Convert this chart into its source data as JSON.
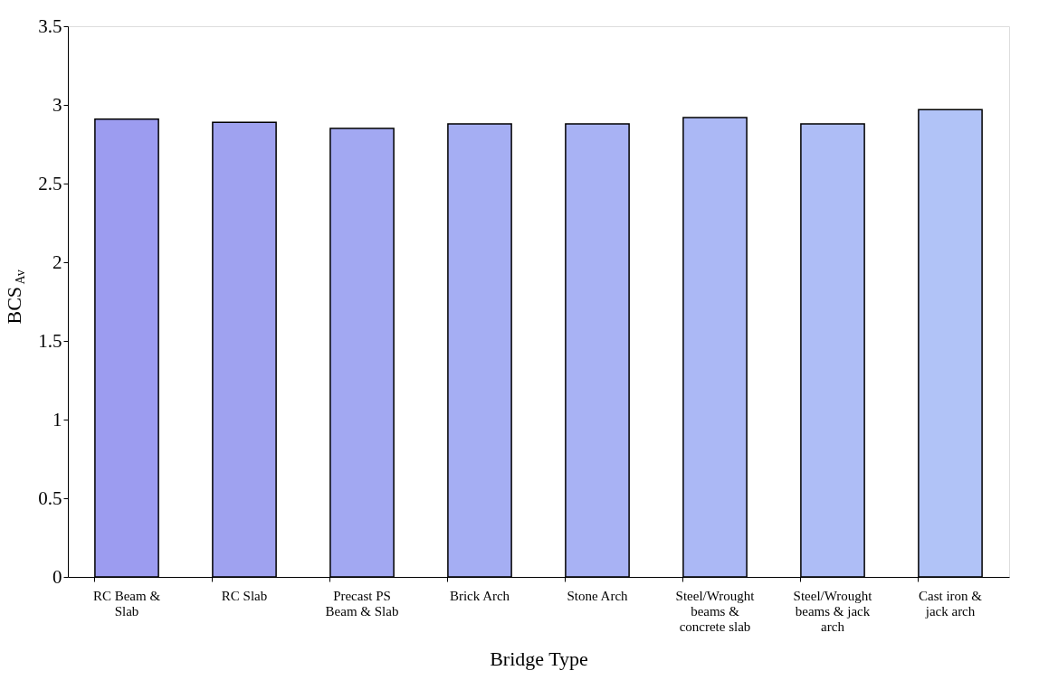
{
  "chart_data": {
    "type": "bar",
    "xlabel": "Bridge Type",
    "ylabel": "BCS$_{Av}$",
    "categories": [
      "RC Beam & Slab",
      "RC Slab",
      "Precast PS Beam & Slab",
      "Brick Arch",
      "Stone Arch",
      "Steel/Wrought beams & concrete slab",
      "Steel/Wrought beams & jack arch",
      "Cast iron & jack arch"
    ],
    "values": [
      2.91,
      2.89,
      2.85,
      2.88,
      2.88,
      2.92,
      2.88,
      2.97
    ],
    "colors": [
      "#9c9cf0",
      "#9fa2f0",
      "#a2a8f2",
      "#a5aef3",
      "#a8b2f4",
      "#abb8f5",
      "#aebdf6",
      "#b1c3f7"
    ],
    "ylim": [
      0,
      3.5
    ],
    "yticks": [
      0,
      0.5,
      1,
      1.5,
      2,
      2.5,
      3,
      3.5
    ],
    "grid": false
  }
}
